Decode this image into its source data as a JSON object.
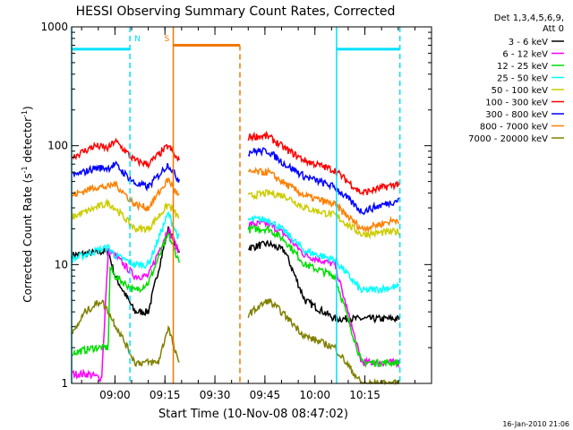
{
  "chart_data": {
    "type": "line",
    "title": "HESSI Observing Summary Count Rates, Corrected",
    "xlabel": "Start Time (10-Nov-08 08:47:02)",
    "ylabel_parts": {
      "main": "Corrected Count Rate (s",
      "sup1": "-1",
      "mid": " detector",
      "sup2": "-1",
      "end": ")"
    },
    "yscale": "log",
    "ylim": [
      1,
      1000
    ],
    "xlim_minutes": [
      527,
      635
    ],
    "y_ticks": [
      {
        "value": 1,
        "label": "1"
      },
      {
        "value": 10,
        "label": "10"
      },
      {
        "value": 100,
        "label": "100"
      },
      {
        "value": 1000,
        "label": "1000"
      }
    ],
    "x_ticks": [
      {
        "minute": 540,
        "label": "09:00"
      },
      {
        "minute": 555,
        "label": "09:15"
      },
      {
        "minute": 570,
        "label": "09:30"
      },
      {
        "minute": 585,
        "label": "09:45"
      },
      {
        "minute": 600,
        "label": "10:00"
      },
      {
        "minute": 615,
        "label": "10:15"
      }
    ],
    "legend_header": [
      "Det 1,3,4,5,6,9,",
      "Att 0"
    ],
    "legend_placement": "right",
    "timestamp": "16-Jan-2010 21:06",
    "markers": [
      {
        "type": "N",
        "label": "N",
        "color": "#00e0ff",
        "level": 650,
        "start": 527,
        "end": 544.5
      },
      {
        "type": "N",
        "label": "",
        "color": "#00e0ff",
        "level": 650,
        "start": 606.5,
        "end": 625.5
      },
      {
        "type": "S",
        "label": "S",
        "color": "#f07800",
        "level": 700,
        "start": 557.5,
        "end": 577.5
      }
    ],
    "gaps": [
      [
        559.5,
        580
      ]
    ],
    "series": [
      {
        "name": "3 - 6 keV",
        "color": "#000000",
        "knots": [
          [
            527,
            12
          ],
          [
            538,
            13
          ],
          [
            540,
            8
          ],
          [
            546,
            4
          ],
          [
            550,
            4
          ],
          [
            556,
            20
          ],
          [
            559,
            13
          ],
          [
            581,
            14
          ],
          [
            586,
            15
          ],
          [
            591,
            13
          ],
          [
            597,
            5
          ],
          [
            606,
            3.5
          ],
          [
            614,
            3.5
          ],
          [
            625,
            3.5
          ]
        ]
      },
      {
        "name": "6 - 12 keV",
        "color": "#ff00ff",
        "knots": [
          [
            527,
            1.2
          ],
          [
            532,
            1.2
          ],
          [
            536,
            1.1
          ],
          [
            538,
            13
          ],
          [
            540,
            12
          ],
          [
            546,
            8
          ],
          [
            550,
            8
          ],
          [
            556,
            20
          ],
          [
            559,
            13
          ],
          [
            581,
            22
          ],
          [
            586,
            22
          ],
          [
            591,
            18
          ],
          [
            597,
            12
          ],
          [
            606,
            10
          ],
          [
            614,
            1.5
          ],
          [
            625,
            1.5
          ]
        ]
      },
      {
        "name": "12 - 25 keV",
        "color": "#00dd00",
        "knots": [
          [
            527,
            1.8
          ],
          [
            534,
            2
          ],
          [
            538,
            2
          ],
          [
            538.5,
            9.5
          ],
          [
            540,
            8
          ],
          [
            546,
            6
          ],
          [
            550,
            7
          ],
          [
            556,
            18
          ],
          [
            559,
            11
          ],
          [
            581,
            20
          ],
          [
            586,
            20
          ],
          [
            591,
            16
          ],
          [
            597,
            10
          ],
          [
            606,
            8
          ],
          [
            614,
            1.5
          ],
          [
            625,
            1.5
          ]
        ]
      },
      {
        "name": "25 - 50 keV",
        "color": "#00ffff",
        "knots": [
          [
            527,
            11
          ],
          [
            534,
            13
          ],
          [
            538,
            14
          ],
          [
            540,
            12
          ],
          [
            546,
            10
          ],
          [
            550,
            10
          ],
          [
            556,
            27
          ],
          [
            559,
            17
          ],
          [
            581,
            24
          ],
          [
            586,
            24
          ],
          [
            591,
            19
          ],
          [
            597,
            13
          ],
          [
            606,
            11
          ],
          [
            614,
            6
          ],
          [
            625,
            6.5
          ]
        ]
      },
      {
        "name": "50 - 100 keV",
        "color": "#cccc00",
        "knots": [
          [
            527,
            25
          ],
          [
            534,
            30
          ],
          [
            538,
            33
          ],
          [
            540,
            30
          ],
          [
            546,
            20
          ],
          [
            550,
            20
          ],
          [
            556,
            32
          ],
          [
            559,
            25
          ],
          [
            581,
            38
          ],
          [
            586,
            40
          ],
          [
            591,
            38
          ],
          [
            597,
            30
          ],
          [
            606,
            26
          ],
          [
            614,
            18
          ],
          [
            625,
            19
          ]
        ]
      },
      {
        "name": "100 - 300 keV",
        "color": "#ff0000",
        "knots": [
          [
            527,
            80
          ],
          [
            534,
            100
          ],
          [
            538,
            95
          ],
          [
            540,
            110
          ],
          [
            546,
            75
          ],
          [
            550,
            70
          ],
          [
            556,
            100
          ],
          [
            559,
            75
          ],
          [
            581,
            120
          ],
          [
            586,
            120
          ],
          [
            591,
            95
          ],
          [
            597,
            75
          ],
          [
            606,
            62
          ],
          [
            614,
            40
          ],
          [
            625,
            48
          ]
        ]
      },
      {
        "name": "300 - 800 keV",
        "color": "#0000ff",
        "knots": [
          [
            527,
            55
          ],
          [
            534,
            65
          ],
          [
            538,
            65
          ],
          [
            540,
            70
          ],
          [
            546,
            48
          ],
          [
            550,
            45
          ],
          [
            556,
            70
          ],
          [
            559,
            52
          ],
          [
            581,
            90
          ],
          [
            586,
            90
          ],
          [
            591,
            70
          ],
          [
            597,
            55
          ],
          [
            606,
            45
          ],
          [
            614,
            28
          ],
          [
            625,
            35
          ]
        ]
      },
      {
        "name": "800 - 7000 keV",
        "color": "#ff8000",
        "knots": [
          [
            527,
            38
          ],
          [
            534,
            45
          ],
          [
            538,
            45
          ],
          [
            540,
            48
          ],
          [
            546,
            32
          ],
          [
            550,
            30
          ],
          [
            556,
            52
          ],
          [
            559,
            38
          ],
          [
            581,
            60
          ],
          [
            586,
            60
          ],
          [
            591,
            48
          ],
          [
            597,
            38
          ],
          [
            606,
            32
          ],
          [
            614,
            20
          ],
          [
            625,
            24
          ]
        ]
      },
      {
        "name": "7000 - 20000 keV",
        "color": "#808000",
        "knots": [
          [
            527,
            2.5
          ],
          [
            531,
            4
          ],
          [
            536,
            5
          ],
          [
            538,
            4
          ],
          [
            542,
            2.5
          ],
          [
            546,
            1.5
          ],
          [
            550,
            1.5
          ],
          [
            553,
            1.5
          ],
          [
            556,
            3
          ],
          [
            559,
            1.5
          ],
          [
            581,
            4
          ],
          [
            586,
            5
          ],
          [
            590,
            4
          ],
          [
            597,
            2.5
          ],
          [
            606,
            2
          ],
          [
            614,
            1
          ],
          [
            625,
            1
          ]
        ]
      }
    ]
  }
}
